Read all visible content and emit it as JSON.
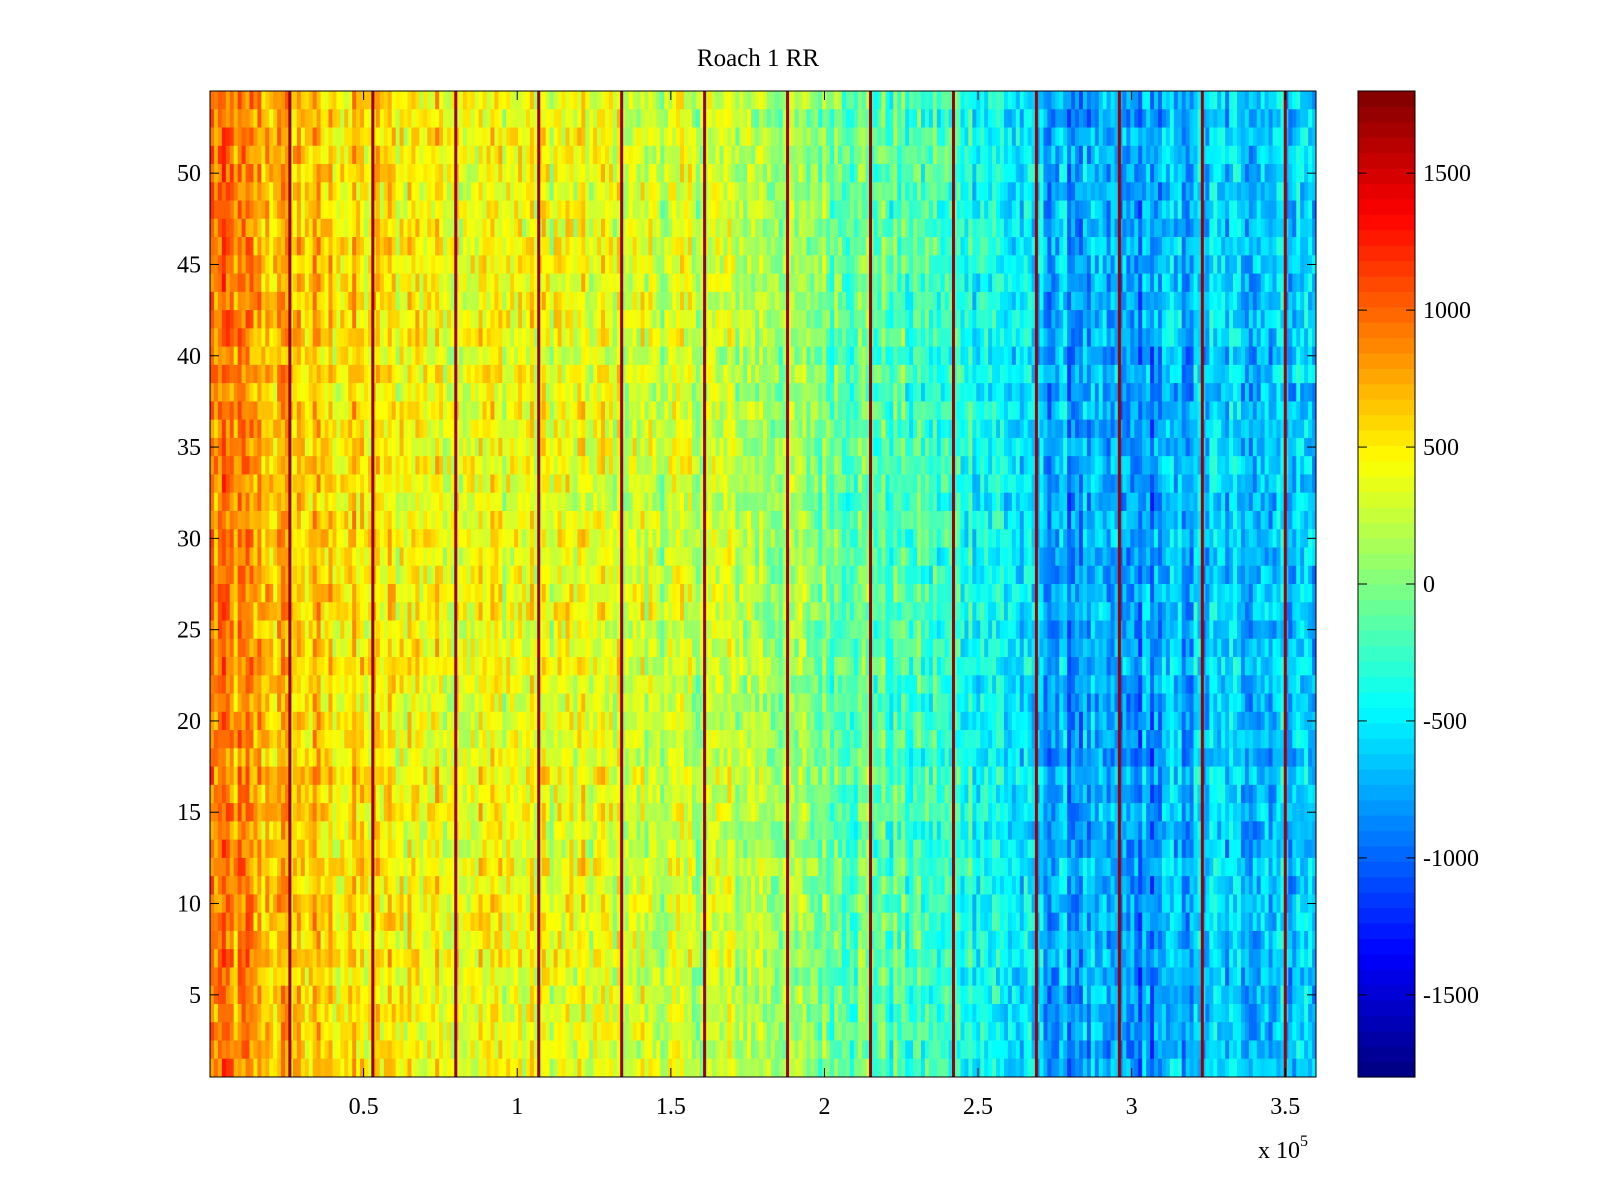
{
  "chart_data": {
    "type": "heatmap",
    "title": "Roach 1 RR",
    "xlabel": "",
    "ylabel": "",
    "x_exponent_label": "x 10",
    "x_exponent_power": "5",
    "xlim": [
      0,
      3.6
    ],
    "ylim": [
      0.5,
      54.5
    ],
    "x_ticks": [
      0.5,
      1,
      1.5,
      2,
      2.5,
      3,
      3.5
    ],
    "x_tick_labels": [
      "0.5",
      "1",
      "1.5",
      "2",
      "2.5",
      "3",
      "3.5"
    ],
    "y_ticks": [
      5,
      10,
      15,
      20,
      25,
      30,
      35,
      40,
      45,
      50
    ],
    "y_tick_labels": [
      "5",
      "10",
      "15",
      "20",
      "25",
      "30",
      "35",
      "40",
      "45",
      "50"
    ],
    "rows": 54,
    "colorbar": {
      "colormap": "jet",
      "range": [
        -1800,
        1800
      ],
      "ticks": [
        -1500,
        -1000,
        -500,
        0,
        500,
        1000,
        1500
      ],
      "tick_labels": [
        "-1500",
        "-1000",
        "-500",
        "0",
        "500",
        "1000",
        "1500"
      ]
    },
    "column_mean_profile": {
      "x": [
        0.0,
        0.25,
        0.5,
        0.75,
        1.0,
        1.25,
        1.5,
        1.75,
        2.0,
        2.25,
        2.5,
        2.75,
        3.0,
        3.25,
        3.6
      ],
      "values": [
        900,
        650,
        500,
        450,
        400,
        350,
        250,
        200,
        0,
        -200,
        -350,
        -750,
        -850,
        -650,
        -600
      ]
    },
    "vertical_high_lines_x": [
      0.26,
      0.53,
      0.8,
      1.07,
      1.34,
      1.61,
      1.88,
      2.15,
      2.42,
      2.69,
      2.96,
      3.23,
      3.5
    ],
    "grid": false
  }
}
